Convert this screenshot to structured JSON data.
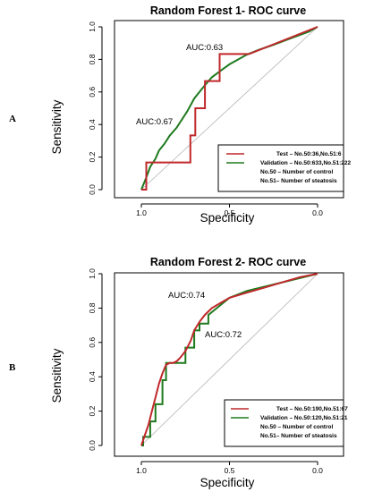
{
  "colors": {
    "test": "#c0282b",
    "validation": "#1f7a1f",
    "diagonal": "#b3b3b3"
  },
  "chart_data": [
    {
      "panel": "A",
      "type": "line",
      "title": "Random Forest 1- ROC curve",
      "xlabel": "Specificity",
      "ylabel": "Sensitivity",
      "xlim": [
        1.0,
        0.0
      ],
      "ylim": [
        0.0,
        1.0
      ],
      "x_reversed": true,
      "xticks": [
        "1.0",
        "0.5",
        "0.0"
      ],
      "yticks": [
        "0.0",
        "0.2",
        "0.4",
        "0.6",
        "0.8",
        "1.0"
      ],
      "annotations": [
        "AUC:0.63",
        "AUC:0.67"
      ],
      "legend_position": "bottom-right",
      "legend_notes": [
        "No.50 – Number of control",
        "No.51– Number of steatosis"
      ],
      "series": [
        {
          "name": "Test – No.50:36,No.51:6",
          "color_key": "test",
          "specificity": [
            1.0,
            0.972,
            0.972,
            0.722,
            0.722,
            0.694,
            0.694,
            0.639,
            0.639,
            0.556,
            0.556,
            0.389,
            0.389,
            0.0
          ],
          "sensitivity": [
            0.0,
            0.0,
            0.167,
            0.167,
            0.333,
            0.333,
            0.5,
            0.5,
            0.667,
            0.667,
            0.833,
            0.833,
            0.833,
            1.0
          ]
        },
        {
          "name": "Validation – No.50:633,No.51:222",
          "color_key": "validation",
          "specificity": [
            1.0,
            0.97,
            0.95,
            0.92,
            0.9,
            0.87,
            0.84,
            0.8,
            0.77,
            0.74,
            0.72,
            0.7,
            0.67,
            0.64,
            0.6,
            0.55,
            0.5,
            0.45,
            0.4,
            0.33,
            0.25,
            0.15,
            0.05,
            0.0
          ],
          "sensitivity": [
            0.0,
            0.08,
            0.14,
            0.19,
            0.24,
            0.28,
            0.33,
            0.38,
            0.43,
            0.48,
            0.52,
            0.56,
            0.6,
            0.64,
            0.69,
            0.73,
            0.77,
            0.8,
            0.83,
            0.86,
            0.89,
            0.93,
            0.97,
            1.0
          ]
        }
      ]
    },
    {
      "panel": "B",
      "type": "line",
      "title": "Random Forest 2- ROC curve",
      "xlabel": "Specificity",
      "ylabel": "Sensitivity",
      "xlim": [
        1.0,
        0.0
      ],
      "ylim": [
        0.0,
        1.0
      ],
      "x_reversed": true,
      "xticks": [
        "1.0",
        "0.5",
        "0.0"
      ],
      "yticks": [
        "0.0",
        "0.2",
        "0.4",
        "0.6",
        "0.8",
        "1.0"
      ],
      "annotations": [
        "AUC:0.74",
        "AUC:0.72"
      ],
      "legend_position": "bottom-right",
      "legend_notes": [
        "No.50 – Number of control",
        "No.51– Number of steatosis"
      ],
      "series": [
        {
          "name": "Test – No.50:190,No.51:67",
          "color_key": "test",
          "specificity": [
            1.0,
            0.98,
            0.96,
            0.94,
            0.92,
            0.9,
            0.88,
            0.86,
            0.84,
            0.82,
            0.8,
            0.78,
            0.75,
            0.72,
            0.7,
            0.67,
            0.64,
            0.6,
            0.55,
            0.5,
            0.4,
            0.3,
            0.2,
            0.1,
            0.0
          ],
          "sensitivity": [
            0.0,
            0.06,
            0.12,
            0.2,
            0.28,
            0.36,
            0.42,
            0.47,
            0.48,
            0.48,
            0.49,
            0.51,
            0.55,
            0.61,
            0.67,
            0.72,
            0.76,
            0.8,
            0.83,
            0.86,
            0.89,
            0.92,
            0.95,
            0.98,
            1.0
          ]
        },
        {
          "name": "Validation – No.50:120,No.51:21",
          "color_key": "validation",
          "specificity": [
            1.0,
            0.99,
            0.99,
            0.95,
            0.95,
            0.92,
            0.92,
            0.88,
            0.88,
            0.86,
            0.86,
            0.75,
            0.75,
            0.7,
            0.7,
            0.67,
            0.67,
            0.62,
            0.62,
            0.5,
            0.4,
            0.2,
            0.0
          ],
          "sensitivity": [
            0.0,
            0.0,
            0.05,
            0.05,
            0.14,
            0.14,
            0.24,
            0.24,
            0.38,
            0.38,
            0.48,
            0.48,
            0.57,
            0.57,
            0.67,
            0.67,
            0.71,
            0.71,
            0.76,
            0.86,
            0.9,
            0.95,
            1.0
          ]
        }
      ]
    }
  ]
}
